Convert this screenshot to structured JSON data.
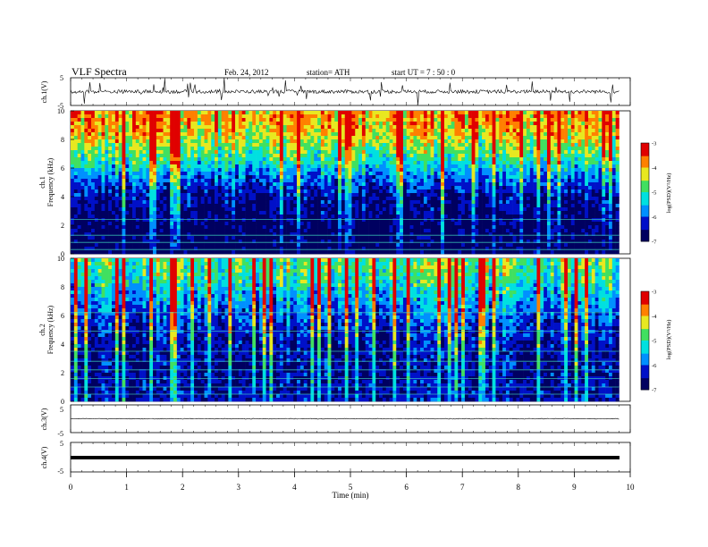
{
  "header": {
    "title": "VLF  Spectra",
    "date": "Feb. 24, 2012",
    "station": "station= ATH",
    "start": "start  UT  =   7 : 50 : 0"
  },
  "chart_data": [
    {
      "type": "line",
      "panel": "ch1-waveform",
      "ylabel": "ch.1(V)",
      "yticks": [
        "5",
        "-5"
      ],
      "ylim": [
        -5,
        5
      ],
      "xlim": [
        0,
        10
      ],
      "x_end": 9.8,
      "series": [
        {
          "values_summary": "noisy waveform around 0 V with spikes to about ±3 V"
        }
      ]
    },
    {
      "type": "heatmap",
      "panel": "ch1-spectrogram",
      "ylabel_channel": "ch.1",
      "ylabel": "Frequency  (kHz)",
      "yticks": [
        "0",
        "2",
        "4",
        "6",
        "8",
        "10"
      ],
      "ylim": [
        0,
        10
      ],
      "xlim": [
        0,
        9.8
      ],
      "colorbar_label": "log(PSD)(V²/Hz)",
      "colorbar_ticks": [
        "-3",
        "-4",
        "-5",
        "-6",
        "-7"
      ],
      "colorbar_range": [
        -7,
        -3
      ],
      "colors": [
        "#000060",
        "#0010c8",
        "#0090ff",
        "#00e0e0",
        "#40e060",
        "#e8e820",
        "#ff8000",
        "#e00000",
        "#ffffff"
      ],
      "profile": [
        {
          "f": 0.5,
          "level": -6.9
        },
        {
          "f": 2,
          "level": -6.8
        },
        {
          "f": 4,
          "level": -6.5
        },
        {
          "f": 5.5,
          "level": -5.8
        },
        {
          "f": 6.5,
          "level": -5.1
        },
        {
          "f": 7.5,
          "level": -4.6
        },
        {
          "f": 8.5,
          "level": -4.1
        },
        {
          "f": 9.5,
          "level": -3.9
        }
      ]
    },
    {
      "type": "heatmap",
      "panel": "ch2-spectrogram",
      "ylabel_channel": "ch.2",
      "ylabel": "Frequency  (kHz)",
      "yticks": [
        "0",
        "2",
        "4",
        "6",
        "8",
        "10"
      ],
      "ylim": [
        0,
        10
      ],
      "xlim": [
        0,
        9.8
      ],
      "colorbar_label": "log(PSD)(V²/Hz)",
      "colorbar_ticks": [
        "-3",
        "-4",
        "-5",
        "-6",
        "-7"
      ],
      "colorbar_range": [
        -7,
        -3
      ],
      "colors": [
        "#000060",
        "#0010c8",
        "#0090ff",
        "#00e0e0",
        "#40e060",
        "#e8e820",
        "#ff8000",
        "#e00000",
        "#ffffff"
      ],
      "profile": [
        {
          "f": 0.5,
          "level": -6.4
        },
        {
          "f": 2,
          "level": -6.5
        },
        {
          "f": 4,
          "level": -6.4
        },
        {
          "f": 5.5,
          "level": -6.1
        },
        {
          "f": 6.5,
          "level": -5.8
        },
        {
          "f": 7.5,
          "level": -5.4
        },
        {
          "f": 8.5,
          "level": -5.0
        },
        {
          "f": 9.5,
          "level": -4.8
        }
      ]
    },
    {
      "type": "line",
      "panel": "ch3-waveform",
      "ylabel": "ch.3(V)",
      "yticks": [
        "5",
        "-5"
      ],
      "ylim": [
        -5,
        5
      ],
      "xlim": [
        0,
        10
      ],
      "series": [
        {
          "values_summary": "flat near 0 V"
        }
      ]
    },
    {
      "type": "line",
      "panel": "ch4-waveform",
      "ylabel": "ch.4(V)",
      "yticks": [
        "5",
        "-5"
      ],
      "ylim": [
        -5,
        5
      ],
      "xlim": [
        0,
        10
      ],
      "series": [
        {
          "values_summary": "flat band near 0 V"
        }
      ]
    }
  ],
  "xaxis": {
    "label": "Time  (min)",
    "ticks": [
      "0",
      "1",
      "2",
      "3",
      "4",
      "5",
      "6",
      "7",
      "8",
      "9",
      "10"
    ],
    "range": [
      0,
      10
    ]
  }
}
